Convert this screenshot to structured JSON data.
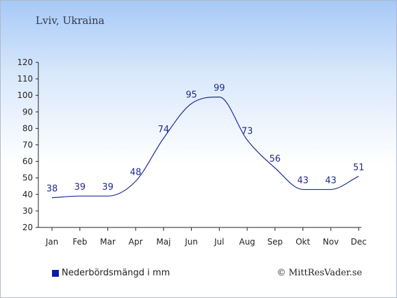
{
  "colors": {
    "line": "#1a2a9c",
    "legend_swatch": "#0a1aa8",
    "axis": "#222222"
  },
  "chart_data": {
    "type": "line",
    "title": "Lviv, Ukraina",
    "categories": [
      "Jan",
      "Feb",
      "Mar",
      "Apr",
      "Maj",
      "Jun",
      "Jul",
      "Aug",
      "Sep",
      "Okt",
      "Nov",
      "Dec"
    ],
    "series": [
      {
        "name": "Nederbördsmängd i mm",
        "values": [
          38,
          39,
          39,
          48,
          74,
          95,
          99,
          73,
          56,
          43,
          43,
          51
        ]
      }
    ],
    "ylim": [
      20,
      120
    ],
    "yticks": [
      20,
      30,
      40,
      50,
      60,
      70,
      80,
      90,
      100,
      110,
      120
    ],
    "grid": false,
    "legend": "bottom-left"
  },
  "credit": "© MittResVader.se"
}
